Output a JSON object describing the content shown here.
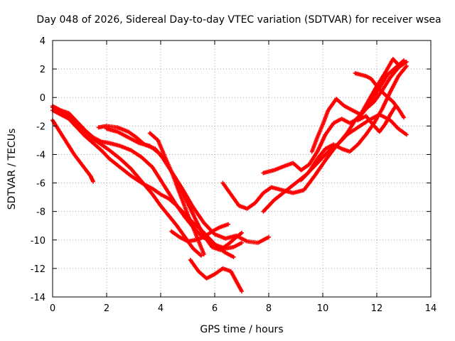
{
  "chart_data": {
    "type": "line",
    "title": "Day 048 of 2026, Sidereal Day-to-day VTEC variation (SDTVAR) for receiver wsea",
    "xlabel": "GPS time / hours",
    "ylabel": "SDTVAR / TECUs",
    "xlim": [
      0,
      14
    ],
    "ylim": [
      -14,
      4
    ],
    "xticks": [
      0,
      2,
      4,
      6,
      8,
      10,
      12,
      14
    ],
    "yticks": [
      -14,
      -12,
      -10,
      -8,
      -6,
      -4,
      -2,
      0,
      2,
      4
    ],
    "grid": true,
    "marker": "plus",
    "series_color": "#ff0000",
    "series": [
      {
        "x": [
          0.0,
          0.3,
          0.6,
          0.9,
          1.2,
          1.5,
          1.8,
          2.1,
          2.5,
          2.9,
          3.3,
          3.7,
          4.0,
          4.3,
          4.6,
          4.9,
          5.2,
          5.5
        ],
        "y": [
          -0.7,
          -1.0,
          -1.3,
          -1.9,
          -2.4,
          -2.9,
          -3.3,
          -3.7,
          -4.3,
          -5.0,
          -5.9,
          -6.8,
          -7.6,
          -8.3,
          -9.0,
          -9.8,
          -10.6,
          -11.1
        ]
      },
      {
        "x": [
          0.0,
          0.3,
          0.6,
          0.9,
          1.2,
          1.5,
          1.8,
          2.1,
          2.5,
          2.9,
          3.3,
          3.7,
          4.0,
          4.3,
          4.6,
          4.9,
          5.2,
          5.5,
          5.8,
          6.1,
          6.4,
          6.7,
          7.0
        ],
        "y": [
          -0.6,
          -0.9,
          -1.1,
          -1.7,
          -2.3,
          -2.8,
          -3.1,
          -3.2,
          -3.4,
          -3.7,
          -4.2,
          -4.9,
          -5.8,
          -6.7,
          -7.6,
          -8.4,
          -9.1,
          -9.7,
          -10.1,
          -10.4,
          -10.6,
          -10.5,
          -10.2
        ]
      },
      {
        "x": [
          0.0,
          0.3,
          0.6,
          0.9,
          1.2,
          1.5,
          1.8,
          2.1,
          2.5,
          2.9,
          3.3,
          3.7,
          4.0,
          4.3,
          4.6,
          4.9,
          5.2,
          5.5,
          5.8,
          6.1,
          6.4,
          6.7
        ],
        "y": [
          -0.9,
          -1.2,
          -1.5,
          -2.1,
          -2.7,
          -3.2,
          -3.7,
          -4.3,
          -4.9,
          -5.5,
          -6.0,
          -6.4,
          -6.8,
          -7.1,
          -7.6,
          -8.2,
          -8.8,
          -9.3,
          -9.9,
          -10.5,
          -10.9,
          -11.2
        ]
      },
      {
        "x": [
          0.0,
          0.2,
          0.4,
          0.6,
          0.8,
          1.0,
          1.2,
          1.4,
          1.5
        ],
        "y": [
          -1.6,
          -2.2,
          -2.8,
          -3.4,
          -4.0,
          -4.5,
          -5.0,
          -5.5,
          -5.9
        ]
      },
      {
        "x": [
          1.7,
          2.0,
          2.4,
          2.8,
          3.1,
          3.4,
          3.8,
          4.1,
          4.4,
          4.7,
          5.0,
          5.3,
          5.6,
          5.9,
          6.2,
          6.5,
          6.8,
          7.0
        ],
        "y": [
          -2.1,
          -2.0,
          -2.1,
          -2.4,
          -2.8,
          -3.3,
          -3.6,
          -4.3,
          -5.2,
          -6.2,
          -7.4,
          -8.6,
          -9.7,
          -10.5,
          -10.7,
          -10.3,
          -9.8,
          -9.5
        ]
      },
      {
        "x": [
          2.0,
          2.4,
          2.8,
          3.2,
          3.6,
          4.0,
          4.4,
          4.8,
          5.2,
          5.6,
          6.0,
          6.4,
          6.8,
          7.2,
          7.6,
          8.0
        ],
        "y": [
          -2.2,
          -2.4,
          -2.8,
          -3.2,
          -3.4,
          -4.0,
          -5.2,
          -6.4,
          -7.7,
          -8.8,
          -9.6,
          -9.9,
          -9.7,
          -10.1,
          -10.2,
          -9.8
        ]
      },
      {
        "x": [
          3.6,
          3.9,
          4.1,
          4.4,
          4.7,
          5.0,
          5.3,
          5.6
        ],
        "y": [
          -2.5,
          -3.0,
          -3.9,
          -5.2,
          -6.7,
          -8.2,
          -9.6,
          -11.0
        ]
      },
      {
        "x": [
          4.4,
          4.7,
          5.0,
          5.3,
          5.6,
          5.9,
          6.2,
          6.5
        ],
        "y": [
          -9.4,
          -9.8,
          -10.1,
          -10.0,
          -9.8,
          -9.4,
          -9.1,
          -8.9
        ]
      },
      {
        "x": [
          5.1,
          5.4,
          5.7,
          6.0,
          6.3,
          6.6,
          6.8,
          7.0
        ],
        "y": [
          -11.4,
          -12.2,
          -12.7,
          -12.4,
          -12.0,
          -12.2,
          -12.9,
          -13.6
        ]
      },
      {
        "x": [
          6.3,
          6.6,
          6.9,
          7.2,
          7.5,
          7.8,
          8.1,
          8.5,
          8.9,
          9.3,
          9.7,
          10.1,
          10.5,
          10.9,
          11.3,
          11.7,
          12.1,
          12.5,
          12.8,
          13.1
        ],
        "y": [
          -6.0,
          -6.8,
          -7.6,
          -7.8,
          -7.4,
          -6.7,
          -6.3,
          -6.5,
          -6.7,
          -6.5,
          -5.5,
          -4.4,
          -3.4,
          -2.6,
          -2.1,
          -1.6,
          -1.2,
          -1.6,
          -2.2,
          -2.6
        ]
      },
      {
        "x": [
          7.8,
          8.2,
          8.6,
          9.0,
          9.4,
          9.8,
          10.2,
          10.6,
          10.9,
          11.2,
          11.5,
          11.8,
          12.1,
          12.4,
          12.7,
          13.0
        ],
        "y": [
          -8.0,
          -7.2,
          -6.6,
          -6.0,
          -5.4,
          -4.6,
          -3.8,
          -3.2,
          -2.5,
          -1.6,
          -1.0,
          -0.2,
          0.7,
          1.6,
          2.1,
          2.6
        ]
      },
      {
        "x": [
          7.8,
          8.2,
          8.6,
          8.9,
          9.2,
          9.5,
          9.8,
          10.1,
          10.4,
          10.7,
          11.0,
          11.3,
          11.6,
          11.9,
          12.2,
          12.5,
          12.8,
          13.1
        ],
        "y": [
          -5.3,
          -5.1,
          -4.8,
          -4.6,
          -5.1,
          -4.7,
          -3.8,
          -2.6,
          -1.8,
          -1.5,
          -1.8,
          -1.5,
          -0.8,
          -0.3,
          0.5,
          1.4,
          2.1,
          2.5
        ]
      },
      {
        "x": [
          9.2,
          9.5,
          9.8,
          10.1,
          10.4,
          10.7,
          11.0,
          11.3,
          11.6,
          11.9,
          12.2,
          12.5,
          12.8,
          13.1
        ],
        "y": [
          -5.8,
          -5.2,
          -4.3,
          -3.6,
          -3.3,
          -3.6,
          -3.8,
          -3.3,
          -2.6,
          -1.8,
          -0.8,
          0.4,
          1.5,
          2.2
        ]
      },
      {
        "x": [
          9.6,
          9.8,
          10.0,
          10.2,
          10.5,
          10.8,
          11.1,
          11.4,
          11.7,
          12.0,
          12.3,
          12.6,
          12.8
        ],
        "y": [
          -3.8,
          -2.8,
          -1.9,
          -0.9,
          -0.1,
          -0.6,
          -0.9,
          -1.2,
          -0.2,
          0.8,
          1.7,
          2.7,
          2.3
        ]
      },
      {
        "x": [
          11.2,
          11.4,
          11.6,
          11.8,
          12.0,
          12.3,
          12.6,
          12.8,
          13.0
        ],
        "y": [
          1.7,
          1.6,
          1.5,
          1.3,
          0.8,
          0.2,
          -0.3,
          -0.8,
          -1.4
        ]
      },
      {
        "x": [
          11.3,
          11.6,
          11.9,
          12.1,
          12.3,
          12.5,
          12.7
        ],
        "y": [
          -1.6,
          -1.3,
          -2.0,
          -2.4,
          -1.9,
          -1.2,
          -0.6
        ]
      }
    ]
  }
}
